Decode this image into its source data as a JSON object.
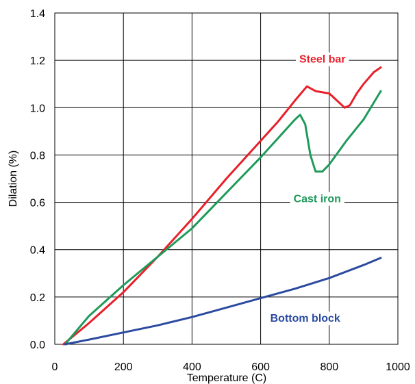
{
  "chart_data": {
    "type": "line",
    "xlabel": "Temperature  (C)",
    "ylabel": "Dilation   (%)",
    "xlim": [
      0,
      1000
    ],
    "ylim": [
      0,
      1.4
    ],
    "xticks": [
      0,
      200,
      400,
      600,
      800,
      1000
    ],
    "yticks": [
      0.0,
      0.2,
      0.4,
      0.6,
      0.8,
      1.0,
      1.2,
      1.4
    ],
    "xtick_labels": [
      "0",
      "200",
      "400",
      "600",
      "800",
      "1000"
    ],
    "ytick_labels": [
      "0.0",
      "0.2",
      "0.4",
      "0.6",
      "0.8",
      "1.0",
      "1.2",
      "1.4"
    ],
    "grid": true,
    "legend": "inline labels",
    "series": [
      {
        "name": "Steel bar",
        "color": "#e8202a",
        "label_at": [
          780,
          1.19
        ],
        "x": [
          25,
          100,
          200,
          300,
          400,
          500,
          600,
          650,
          700,
          735,
          760,
          800,
          830,
          845,
          860,
          880,
          900,
          930,
          950
        ],
        "y": [
          0.0,
          0.09,
          0.22,
          0.37,
          0.53,
          0.7,
          0.86,
          0.94,
          1.03,
          1.09,
          1.07,
          1.06,
          1.02,
          1.0,
          1.01,
          1.06,
          1.1,
          1.15,
          1.17
        ]
      },
      {
        "name": "Cast iron",
        "color": "#1e9a5a",
        "label_at": [
          765,
          0.6
        ],
        "x": [
          30,
          100,
          200,
          300,
          400,
          500,
          600,
          650,
          700,
          715,
          730,
          745,
          760,
          780,
          800,
          850,
          900,
          950
        ],
        "y": [
          0.0,
          0.12,
          0.25,
          0.37,
          0.49,
          0.64,
          0.79,
          0.87,
          0.95,
          0.97,
          0.93,
          0.8,
          0.73,
          0.73,
          0.76,
          0.86,
          0.95,
          1.07
        ]
      },
      {
        "name": "Bottom block",
        "color": "#2b4aa0",
        "label_at": [
          730,
          0.095
        ],
        "x": [
          30,
          100,
          200,
          300,
          400,
          500,
          600,
          700,
          800,
          900,
          950
        ],
        "y": [
          0.0,
          0.02,
          0.05,
          0.08,
          0.115,
          0.155,
          0.195,
          0.235,
          0.28,
          0.335,
          0.365
        ]
      }
    ]
  }
}
